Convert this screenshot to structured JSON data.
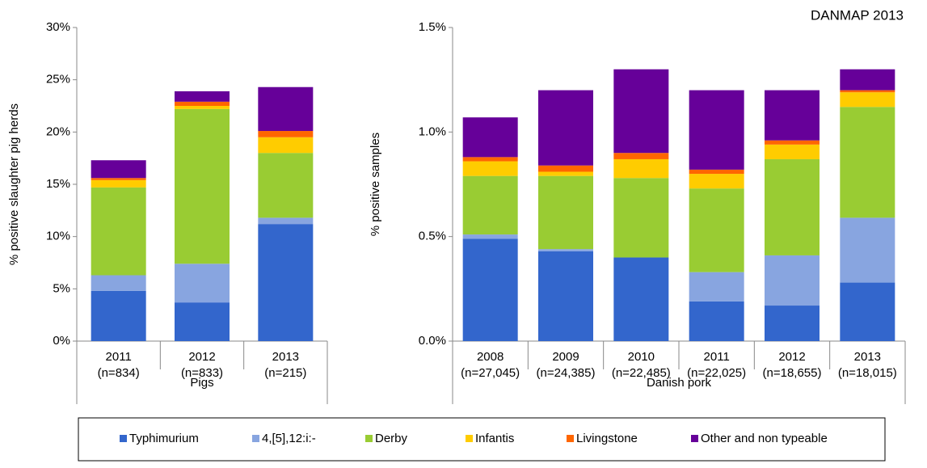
{
  "annotation": "DANMAP 2013",
  "chart_data": [
    {
      "type": "bar",
      "stacked": true,
      "ylabel": "% positive slaughter pig herds",
      "group_label": "Pigs",
      "categories": [
        "2011",
        "2012",
        "2013"
      ],
      "category_notes": [
        "(n=834)",
        "(n=833)",
        "(n=215)"
      ],
      "ylim": [
        0,
        30
      ],
      "yticks": [
        {
          "value": 0,
          "label": "0%"
        },
        {
          "value": 5,
          "label": "5%"
        },
        {
          "value": 10,
          "label": "10%"
        },
        {
          "value": 15,
          "label": "15%"
        },
        {
          "value": 20,
          "label": "20%"
        },
        {
          "value": 25,
          "label": "25%"
        },
        {
          "value": 30,
          "label": "30%"
        }
      ],
      "series": [
        {
          "name": "Typhimurium",
          "color": "#3366cc",
          "values": [
            4.8,
            3.7,
            11.2
          ]
        },
        {
          "name": "4,[5],12:i:-",
          "color": "#88a5e0",
          "values": [
            1.5,
            3.7,
            0.6
          ]
        },
        {
          "name": "Derby",
          "color": "#99cc33",
          "values": [
            8.4,
            14.8,
            6.2
          ]
        },
        {
          "name": "Infantis",
          "color": "#ffcc00",
          "values": [
            0.7,
            0.3,
            1.5
          ]
        },
        {
          "name": "Livingstone",
          "color": "#ff6600",
          "values": [
            0.2,
            0.4,
            0.6
          ]
        },
        {
          "name": "Other and non typeable",
          "color": "#660099",
          "values": [
            1.7,
            1.0,
            4.2
          ]
        }
      ]
    },
    {
      "type": "bar",
      "stacked": true,
      "ylabel": "% positive samples",
      "group_label": "Danish pork",
      "categories": [
        "2008",
        "2009",
        "2010",
        "2011",
        "2012",
        "2013"
      ],
      "category_notes": [
        "(n=27,045)",
        "(n=24,385)",
        "(n=22,485)",
        "(n=22,025)",
        "(n=18,655)",
        "(n=18,015)"
      ],
      "ylim": [
        0,
        1.5
      ],
      "yticks": [
        {
          "value": 0,
          "label": "0.0%"
        },
        {
          "value": 0.5,
          "label": "0.5%"
        },
        {
          "value": 1,
          "label": "1.0%"
        },
        {
          "value": 1.5,
          "label": "1.5%"
        }
      ],
      "series": [
        {
          "name": "Typhimurium",
          "color": "#3366cc",
          "values": [
            0.49,
            0.43,
            0.4,
            0.19,
            0.17,
            0.28
          ]
        },
        {
          "name": "4,[5],12:i:-",
          "color": "#88a5e0",
          "values": [
            0.02,
            0.01,
            0,
            0.14,
            0.24,
            0.31
          ]
        },
        {
          "name": "Derby",
          "color": "#99cc33",
          "values": [
            0.28,
            0.35,
            0.38,
            0.4,
            0.46,
            0.53
          ]
        },
        {
          "name": "Infantis",
          "color": "#ffcc00",
          "values": [
            0.07,
            0.02,
            0.09,
            0.07,
            0.07,
            0.07
          ]
        },
        {
          "name": "Livingstone",
          "color": "#ff6600",
          "values": [
            0.02,
            0.03,
            0.03,
            0.02,
            0.02,
            0.01
          ]
        },
        {
          "name": "Other and non typeable",
          "color": "#660099",
          "values": [
            0.19,
            0.36,
            0.4,
            0.38,
            0.24,
            0.1
          ]
        }
      ]
    }
  ]
}
